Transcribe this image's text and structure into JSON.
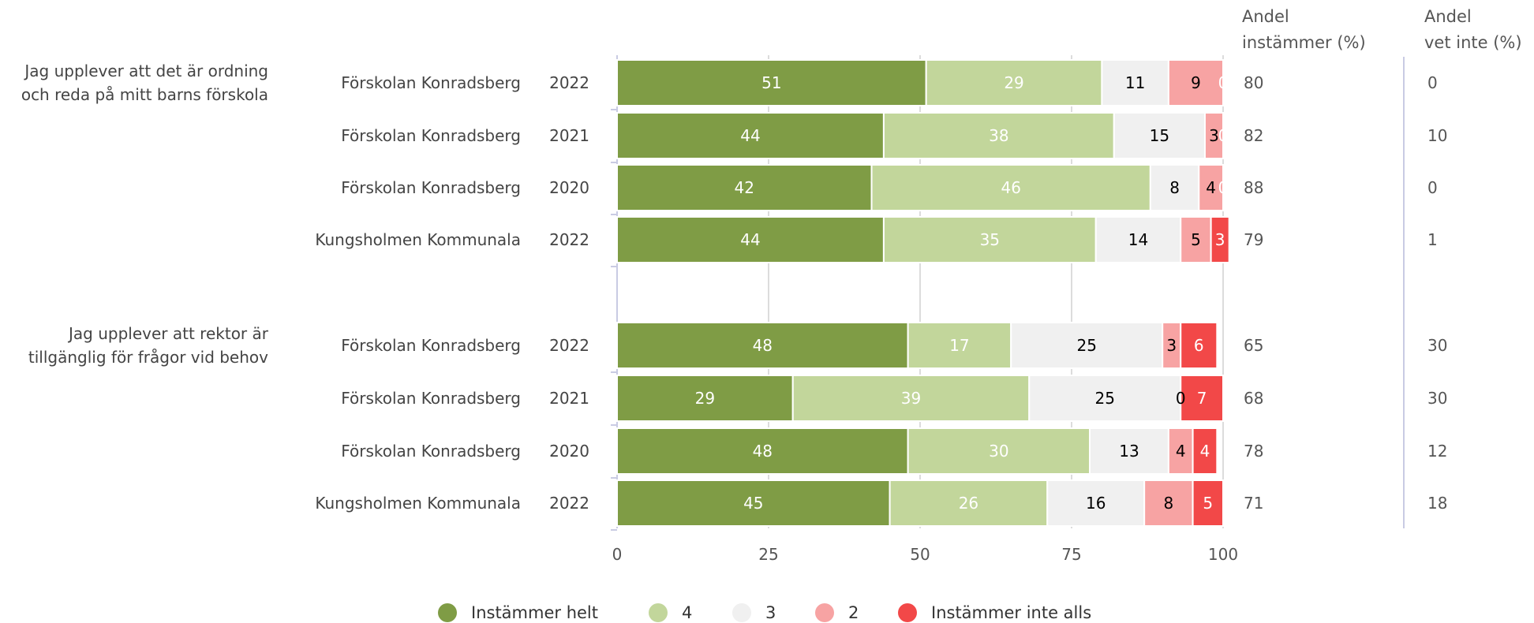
{
  "chart_data": {
    "type": "bar",
    "stacked": true,
    "orientation": "horizontal",
    "xlim": [
      0,
      100
    ],
    "xticks": [
      "0",
      "25",
      "50",
      "75",
      "100"
    ],
    "grid": true,
    "legend_position": "bottom",
    "headers": {
      "col1": [
        "Andel",
        "instämmer (%)"
      ],
      "col2": [
        "Andel",
        "vet inte (%)"
      ]
    },
    "series": [
      {
        "name": "Instämmer helt",
        "color": "#7f9c45"
      },
      {
        "name": "4",
        "color": "#c2d69b"
      },
      {
        "name": "3",
        "color": "#f0f0f0"
      },
      {
        "name": "2",
        "color": "#f7a3a3"
      },
      {
        "name": "Instämmer inte alls",
        "color": "#f24848"
      }
    ],
    "groups": [
      {
        "question": [
          "Jag upplever att det är ordning",
          "och reda på mitt barns förskola"
        ],
        "rows": [
          {
            "unit": "Förskolan Konradsberg",
            "year": "2022",
            "values": [
              51,
              29,
              11,
              9,
              0
            ],
            "agree": "80",
            "dontknow": "0"
          },
          {
            "unit": "Förskolan Konradsberg",
            "year": "2021",
            "values": [
              44,
              38,
              15,
              3,
              0
            ],
            "agree": "82",
            "dontknow": "10"
          },
          {
            "unit": "Förskolan Konradsberg",
            "year": "2020",
            "values": [
              42,
              46,
              8,
              4,
              0
            ],
            "agree": "88",
            "dontknow": "0"
          },
          {
            "unit": "Kungsholmen Kommunala",
            "year": "2022",
            "values": [
              44,
              35,
              14,
              5,
              3
            ],
            "agree": "79",
            "dontknow": "1"
          }
        ]
      },
      {
        "question": [
          "Jag upplever att rektor är",
          "tillgänglig för frågor vid behov"
        ],
        "rows": [
          {
            "unit": "Förskolan Konradsberg",
            "year": "2022",
            "values": [
              48,
              17,
              25,
              3,
              6
            ],
            "agree": "65",
            "dontknow": "30"
          },
          {
            "unit": "Förskolan Konradsberg",
            "year": "2021",
            "values": [
              29,
              39,
              25,
              0,
              7
            ],
            "agree": "68",
            "dontknow": "30"
          },
          {
            "unit": "Förskolan Konradsberg",
            "year": "2020",
            "values": [
              48,
              30,
              13,
              4,
              4
            ],
            "agree": "78",
            "dontknow": "12"
          },
          {
            "unit": "Kungsholmen Kommunala",
            "year": "2022",
            "values": [
              45,
              26,
              16,
              8,
              5
            ],
            "agree": "71",
            "dontknow": "18"
          }
        ]
      }
    ]
  }
}
